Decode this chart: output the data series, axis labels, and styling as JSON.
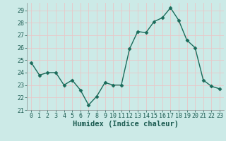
{
  "x": [
    0,
    1,
    2,
    3,
    4,
    5,
    6,
    7,
    8,
    9,
    10,
    11,
    12,
    13,
    14,
    15,
    16,
    17,
    18,
    19,
    20,
    21,
    22,
    23
  ],
  "y": [
    24.8,
    23.8,
    24.0,
    24.0,
    23.0,
    23.4,
    22.6,
    21.4,
    22.1,
    23.2,
    23.0,
    23.0,
    25.9,
    27.3,
    27.2,
    28.1,
    28.4,
    29.2,
    28.2,
    26.6,
    26.0,
    23.4,
    22.9,
    22.7
  ],
  "line_color": "#1a6b5a",
  "marker": "D",
  "marker_size": 2.5,
  "line_width": 1.0,
  "bg_color": "#cceae7",
  "grid_color": "#e8c8c8",
  "xlabel": "Humidex (Indice chaleur)",
  "xlim": [
    -0.5,
    23.5
  ],
  "ylim": [
    21,
    29.6
  ],
  "yticks": [
    21,
    22,
    23,
    24,
    25,
    26,
    27,
    28,
    29
  ],
  "xticks": [
    0,
    1,
    2,
    3,
    4,
    5,
    6,
    7,
    8,
    9,
    10,
    11,
    12,
    13,
    14,
    15,
    16,
    17,
    18,
    19,
    20,
    21,
    22,
    23
  ],
  "tick_fontsize": 6,
  "xlabel_fontsize": 7.5,
  "tick_color": "#1a5a50"
}
